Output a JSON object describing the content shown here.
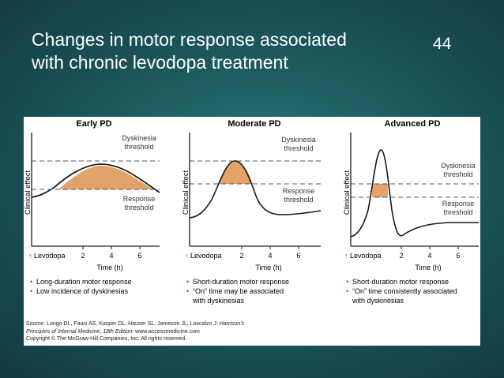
{
  "slide": {
    "title_line1": "Changes in motor response associated",
    "title_line2": "with chronic levodopa treatment",
    "number": "44"
  },
  "figure": {
    "y_axis_label": "Clinical effect",
    "x_axis_label": "Time (h)",
    "x_ticks": [
      "2",
      "4",
      "6"
    ],
    "levodopa_label": "Levodopa",
    "levodopa_arrow": "↑",
    "colors": {
      "fill": "#e3a26a",
      "curve": "#1a1a1a",
      "dashed": "#555555",
      "bullet": "#d0245a"
    },
    "panels": [
      {
        "title": "Early PD",
        "dyskinesia_label": [
          "Dyskinesia",
          "threshold"
        ],
        "response_label": [
          "Response",
          "threshold"
        ],
        "bullets": [
          "Long-duration motor response",
          "Low incidence of dyskinesias"
        ]
      },
      {
        "title": "Moderate PD",
        "dyskinesia_label": [
          "Dyskinesia",
          "threshold"
        ],
        "response_label": [
          "Response",
          "threshold"
        ],
        "bullets": [
          "Short-duration motor response",
          "“On” time may be associated",
          "with dyskinesias"
        ]
      },
      {
        "title": "Advanced PD",
        "dyskinesia_label": [
          "Dyskinesia",
          "threshold"
        ],
        "response_label": [
          "Response",
          "threshold"
        ],
        "bullets": [
          "Short-duration motor response",
          "“On” time consistently associated",
          "with dyskinesias"
        ]
      }
    ],
    "source": {
      "prefix": "Source: Longo DL, Fauci AS, Kasper DL, Hauser SL, Jameson JL, Loscalzo J:",
      "book": "Harrison's",
      "book2": "Principles of Internal Medicine, 18th Edition:",
      "url": "www.accessmedicine.com",
      "copyright": "Copyright © The McGraw-Hill Companies, Inc. All rights reserved."
    }
  }
}
